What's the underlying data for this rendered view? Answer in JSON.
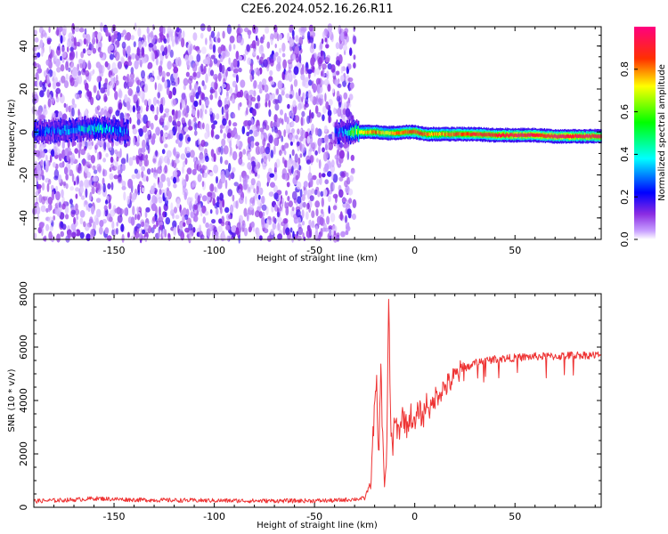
{
  "title": "C2E6.2024.052.16.26.R11",
  "chart_data": [
    {
      "type": "heatmap",
      "title": "C2E6.2024.052.16.26.R11",
      "xlabel": "Height of straight line (km)",
      "ylabel": "Frequency (Hz)",
      "xlim": [
        -190,
        93
      ],
      "ylim": [
        -50,
        49
      ],
      "x_ticks": [
        -150,
        -100,
        -50,
        0,
        50
      ],
      "y_ticks": [
        -40,
        -20,
        0,
        20,
        40
      ],
      "colorbar": {
        "label": "Normalized spectral amplitude",
        "range": [
          0,
          1
        ],
        "ticks": [
          0.0,
          0.2,
          0.4,
          0.6,
          0.8
        ],
        "colormap": [
          "#ffffff",
          "#8a2be2",
          "#0000ff",
          "#00ffff",
          "#00ff00",
          "#ffff00",
          "#ff8000",
          "#ff0000",
          "#ff007f"
        ]
      },
      "noise_region_x": [
        -190,
        -30
      ],
      "signal_band": {
        "x": [
          -190,
          -170,
          -160,
          -150,
          -143,
          -40,
          -35,
          -30,
          -25,
          -20,
          -15,
          -10,
          -5,
          0,
          5,
          10,
          20,
          30,
          40,
          50,
          60,
          70,
          80,
          93
        ],
        "center_freq": [
          0,
          1,
          2,
          1,
          0,
          0,
          0,
          0,
          0,
          0,
          -0.5,
          -0.5,
          0,
          0,
          -1,
          -1,
          -1,
          -1,
          -1.5,
          -1.5,
          -1.5,
          -2,
          -2,
          -2
        ],
        "peak_amplitude": [
          0.3,
          0.35,
          0.45,
          0.35,
          0.3,
          0.25,
          0.35,
          0.6,
          0.75,
          0.85,
          0.7,
          0.8,
          0.85,
          0.9,
          0.85,
          0.8,
          0.85,
          0.9,
          0.9,
          0.95,
          0.95,
          0.95,
          0.95,
          0.95
        ]
      }
    },
    {
      "type": "line",
      "xlabel": "Height of straight line (km)",
      "ylabel": "SNR (10 * v/v)",
      "xlim": [
        -190,
        93
      ],
      "ylim": [
        0,
        8000
      ],
      "x_ticks": [
        -150,
        -100,
        -50,
        0,
        50
      ],
      "y_ticks": [
        0,
        2000,
        4000,
        6000,
        8000
      ],
      "color": "#ee3333",
      "series": [
        {
          "x": [
            -190,
            -170,
            -160,
            -140,
            -120,
            -100,
            -80,
            -60,
            -40,
            -25,
            -22,
            -20,
            -19,
            -18,
            -17,
            -16,
            -15,
            -14,
            -13,
            -12,
            -11,
            -10,
            -8,
            -6,
            -4,
            -2,
            0,
            2,
            4,
            6,
            8,
            10,
            12,
            15,
            18,
            20,
            25,
            30,
            35,
            40,
            50,
            60,
            70,
            80,
            93
          ],
          "y": [
            200,
            250,
            300,
            250,
            230,
            220,
            210,
            210,
            220,
            300,
            900,
            3800,
            4500,
            1500,
            5500,
            2500,
            900,
            1900,
            7700,
            3000,
            2200,
            3200,
            2800,
            3500,
            3000,
            3500,
            3000,
            3700,
            3300,
            4000,
            3600,
            4100,
            4300,
            4500,
            4700,
            4900,
            5200,
            5400,
            5500,
            5550,
            5600,
            5650,
            5650,
            5700,
            5700
          ]
        }
      ]
    }
  ]
}
